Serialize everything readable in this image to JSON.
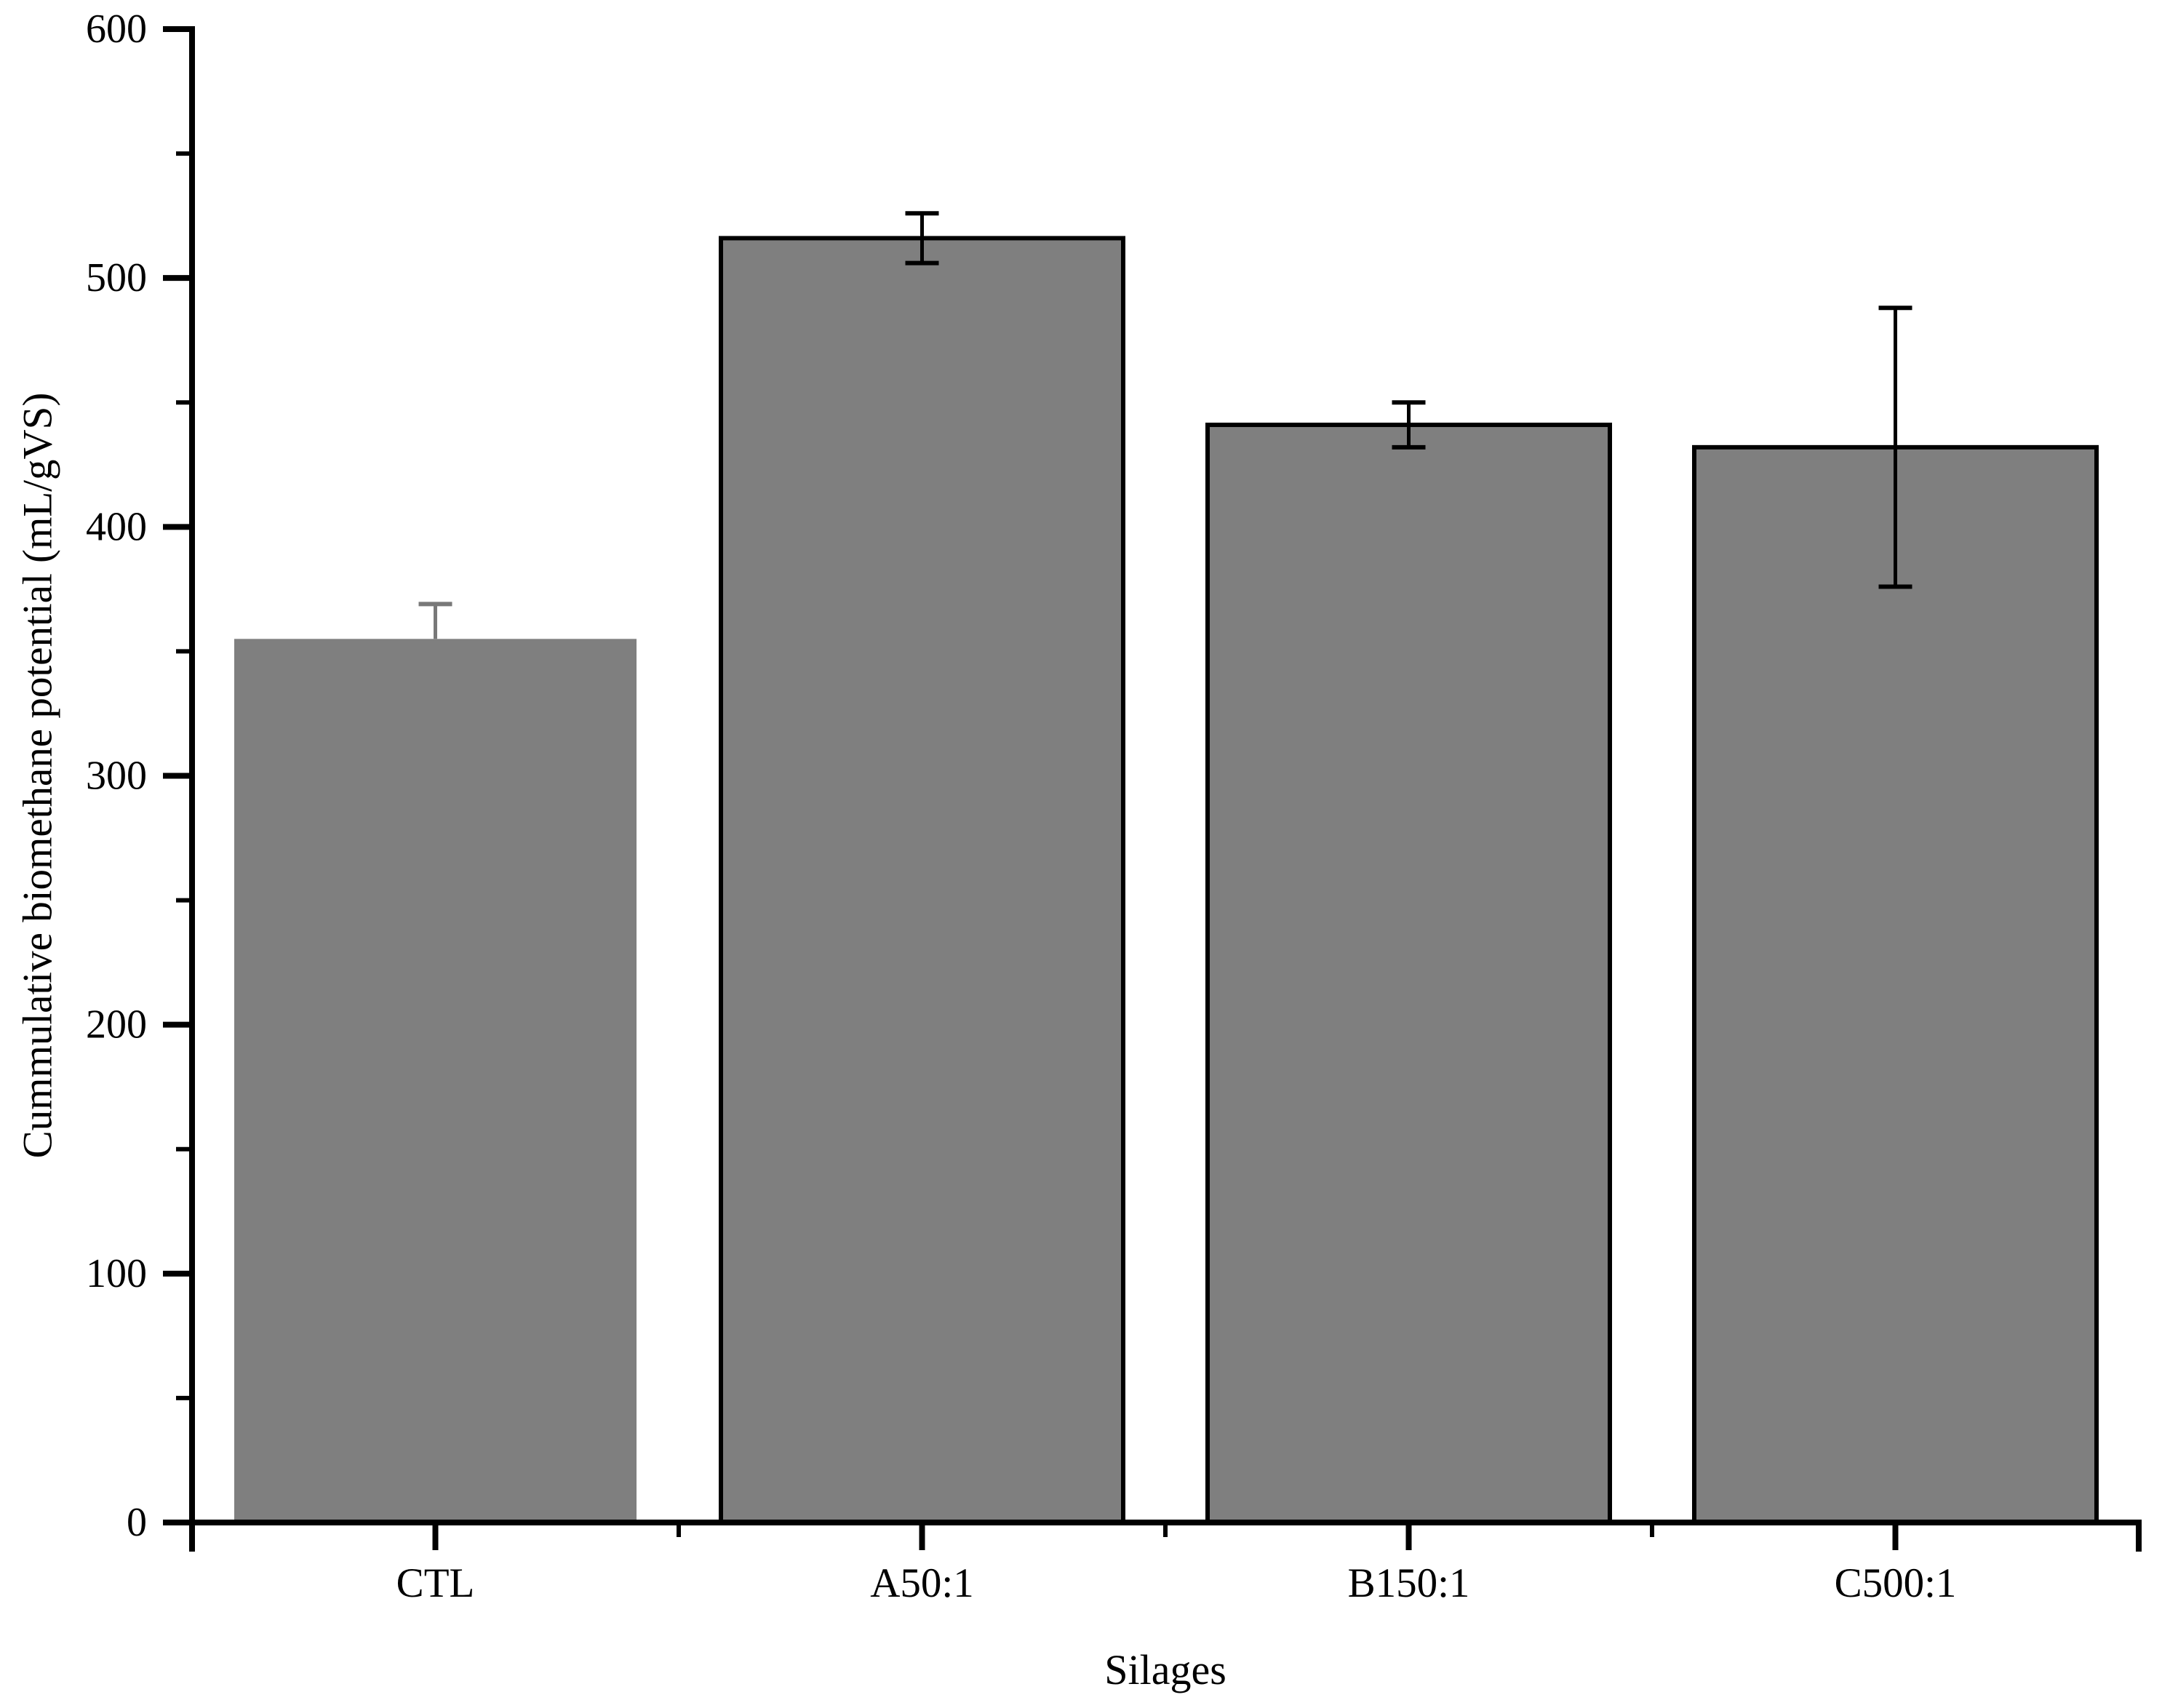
{
  "chart_data": {
    "type": "bar",
    "title": "",
    "xlabel": "Silages",
    "ylabel": "Cummulative biomethane potential (mL/gVS)",
    "categories": [
      "CTL",
      "A50:1",
      "B150:1",
      "C500:1"
    ],
    "values": [
      355,
      516,
      441,
      432
    ],
    "errors": [
      14,
      10,
      9,
      56
    ],
    "error_caps_shown": [
      "upper",
      "both",
      "both",
      "both"
    ],
    "ylim": [
      0,
      600
    ],
    "y_major_tick_step": 100,
    "y_minor_tick_step": 50,
    "y_tick_labels": [
      "0",
      "100",
      "200",
      "300",
      "400",
      "500",
      "600"
    ],
    "grid": false,
    "legend": "none",
    "bar_color": "#7f7f7f",
    "bar_border_colors": [
      "none",
      "#000000",
      "#000000",
      "#000000"
    ],
    "error_bar_colors": [
      "#787878",
      "#000000",
      "#000000",
      "#000000"
    ],
    "axis_color": "#000000",
    "background_color": "#ffffff"
  }
}
